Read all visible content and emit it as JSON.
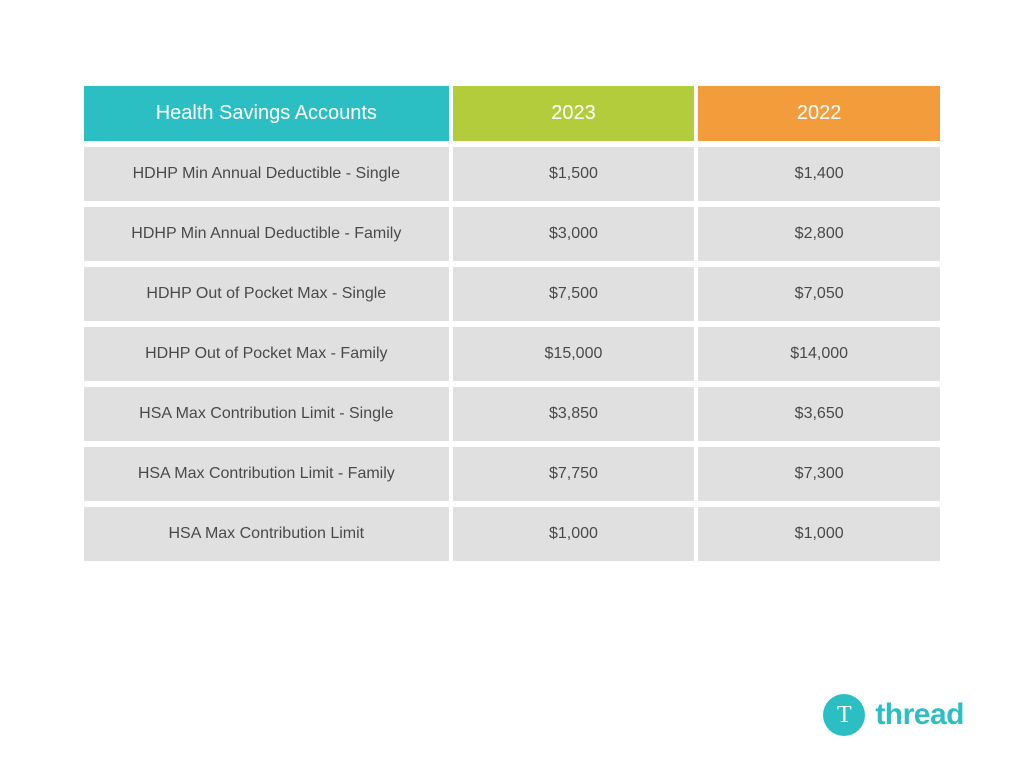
{
  "table": {
    "type": "table",
    "columns": [
      {
        "label": "Health Savings Accounts",
        "header_bg": "#2bbfc4",
        "width_pct": 43
      },
      {
        "label": "2023",
        "header_bg": "#b3cc3c",
        "width_pct": 28.5
      },
      {
        "label": "2022",
        "header_bg": "#f39c3c",
        "width_pct": 28.5
      }
    ],
    "rows": [
      [
        "HDHP Min Annual Deductible - Single",
        "$1,500",
        "$1,400"
      ],
      [
        "HDHP Min Annual Deductible - Family",
        "$3,000",
        "$2,800"
      ],
      [
        "HDHP Out of Pocket Max - Single",
        "$7,500",
        "$7,050"
      ],
      [
        "HDHP Out of Pocket Max - Family",
        "$15,000",
        "$14,000"
      ],
      [
        "HSA Max Contribution Limit - Single",
        "$3,850",
        "$3,650"
      ],
      [
        "HSA Max Contribution Limit - Family",
        "$7,750",
        "$7,300"
      ],
      [
        "HSA Max Contribution Limit",
        "$1,000",
        "$1,000"
      ]
    ],
    "cell_bg": "#e0e0e0",
    "cell_text_color": "#4a4a4a",
    "header_text_color": "#ffffff",
    "header_fontsize": 20,
    "cell_fontsize": 16,
    "row_spacing": 6,
    "col_spacing": 4
  },
  "logo": {
    "letter": "T",
    "text": "thread",
    "circle_color": "#2bbfc4",
    "text_color": "#2bbfc4",
    "letter_color": "#ffffff"
  },
  "background_color": "#ffffff"
}
